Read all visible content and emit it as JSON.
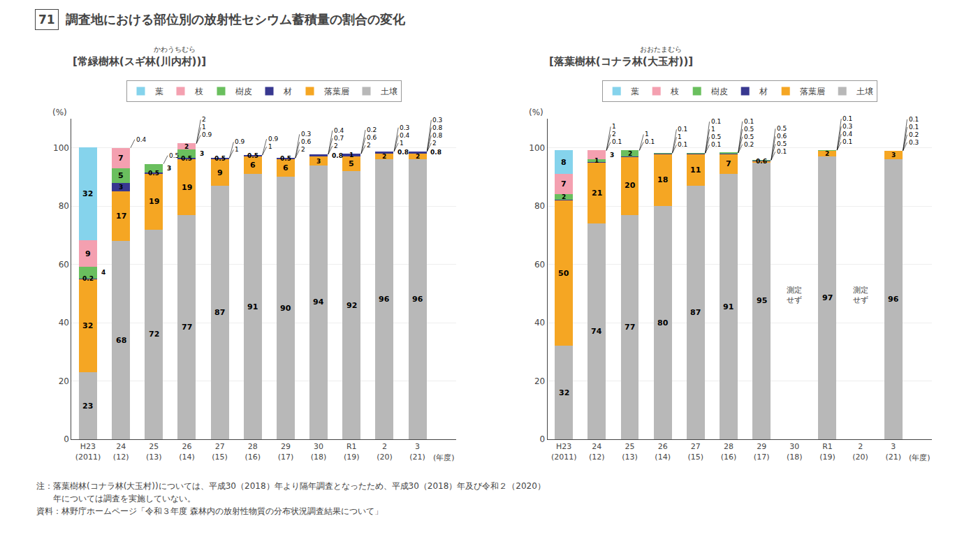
{
  "title": "調査地における部位別の放射性セシウム蓄積量の割合の変化",
  "figure_number": "71",
  "notes": [
    "注：落葉樹林(コナラ林(大玉村))については、平成30（2018）年より隔年調査となったため、平成30（2018）年及び令和２（2020）",
    "　　年については調査を実施していない。"
  ],
  "source": "資料：林野庁ホームページ「令和３年度 森林内の放射性物質の分布状況調査結果について」",
  "chart_data": [
    {
      "type": "bar",
      "stacked": true,
      "title": "[常緑樹林(スギ林(川内村))]",
      "subtitle": "かわうちむら",
      "xlabel": "(年度)",
      "ylabel": "(%)",
      "categories": [
        "H23\n(2011)",
        "24\n(12)",
        "25\n(13)",
        "26\n(14)",
        "27\n(15)",
        "28\n(16)",
        "29\n(17)",
        "30\n(18)",
        "R1\n(19)",
        "2\n(20)",
        "3\n(21)"
      ],
      "ylim": [
        0,
        110
      ],
      "yticks": [
        0,
        20,
        40,
        60,
        80,
        100
      ],
      "grid": "y",
      "legend": "top",
      "data_labels": true,
      "series": [
        {
          "name": "土壌",
          "color": "#b8b8b8",
          "values": [
            23,
            68,
            72,
            77,
            87,
            91,
            90,
            94,
            92,
            96,
            96
          ],
          "value_labels": [
            "23",
            "68",
            "72",
            "77",
            "87",
            "91",
            "90",
            "94",
            "92",
            "96",
            "96"
          ]
        },
        {
          "name": "落葉層",
          "color": "#f5a623",
          "values": [
            32,
            17,
            19,
            19,
            9,
            6,
            6,
            3,
            5,
            2,
            2
          ],
          "value_labels": [
            "32",
            "17",
            "19",
            "19",
            "9",
            "6",
            "6",
            "3",
            "5",
            "2",
            "2"
          ]
        },
        {
          "name": "材",
          "color": "#383890",
          "values": [
            0.2,
            3,
            0.5,
            0.5,
            0.5,
            0.5,
            0.5,
            0.8,
            1,
            0.8,
            0.8
          ],
          "value_labels": [
            "0.2",
            "3",
            "0.5",
            "0.5",
            "0.5",
            "0.5",
            "0.5",
            "0.8",
            "1",
            "0.8",
            "0.8"
          ]
        },
        {
          "name": "樹皮",
          "color": "#6abf5e",
          "values": [
            4,
            5,
            3,
            3,
            0,
            0,
            0,
            0,
            0,
            0,
            0
          ],
          "value_labels": [
            "4",
            "5",
            "3",
            "3",
            null,
            null,
            null,
            null,
            null,
            null,
            null
          ]
        },
        {
          "name": "枝",
          "color": "#f4a0b0",
          "values": [
            9,
            7,
            0,
            2,
            0,
            0,
            0,
            0,
            0,
            0,
            0
          ],
          "value_labels": [
            "9",
            "7",
            null,
            "2",
            null,
            null,
            null,
            null,
            null,
            null,
            null
          ]
        },
        {
          "name": "葉",
          "color": "#85d3ec",
          "values": [
            32,
            0,
            0,
            0,
            0,
            0,
            0,
            0,
            0,
            0,
            0
          ],
          "value_labels": [
            "32",
            null,
            null,
            null,
            null,
            null,
            null,
            null,
            null,
            null,
            null
          ]
        }
      ],
      "callouts": [
        {
          "category": "24\n(12)",
          "labels": [
            "0.4"
          ]
        },
        {
          "category": "25\n(13)",
          "labels": [
            "0.5"
          ]
        },
        {
          "category": "26\n(14)",
          "labels": [
            "2",
            "1",
            "0.9"
          ]
        },
        {
          "category": "27\n(15)",
          "labels": [
            "0.9",
            "1"
          ]
        },
        {
          "category": "28\n(16)",
          "labels": [
            "0.9",
            "1"
          ]
        },
        {
          "category": "29\n(17)",
          "labels": [
            "0.3",
            "0.6",
            "2"
          ]
        },
        {
          "category": "30\n(18)",
          "labels": [
            "0.4",
            "0.7",
            "2"
          ]
        },
        {
          "category": "R1\n(19)",
          "labels": [
            "0.2",
            "0.6",
            "2"
          ]
        },
        {
          "category": "2\n(20)",
          "labels": [
            "0.3",
            "0.4",
            "1"
          ]
        },
        {
          "category": "3\n(21)",
          "labels": [
            "0.3",
            "0.8",
            "0.8",
            "2"
          ]
        }
      ]
    },
    {
      "type": "bar",
      "stacked": true,
      "title": "[落葉樹林(コナラ林(大玉村))]",
      "subtitle": "おおたまむら",
      "xlabel": "(年度)",
      "ylabel": "(%)",
      "categories": [
        "H23\n(2011)",
        "24\n(12)",
        "25\n(13)",
        "26\n(14)",
        "27\n(15)",
        "28\n(16)",
        "29\n(17)",
        "30\n(18)",
        "R1\n(19)",
        "2\n(20)",
        "3\n(21)"
      ],
      "ylim": [
        0,
        110
      ],
      "yticks": [
        0,
        20,
        40,
        60,
        80,
        100
      ],
      "grid": "y",
      "legend": "top",
      "data_labels": true,
      "series": [
        {
          "name": "土壌",
          "color": "#b8b8b8",
          "values": [
            32,
            74,
            77,
            80,
            87,
            91,
            95,
            0,
            97,
            0,
            96
          ],
          "value_labels": [
            "32",
            "74",
            "77",
            "80",
            "87",
            "91",
            "95",
            null,
            "97",
            null,
            "96"
          ]
        },
        {
          "name": "落葉層",
          "color": "#f5a623",
          "values": [
            50,
            21,
            20,
            18,
            11,
            7,
            0.6,
            0,
            2,
            0,
            3
          ],
          "value_labels": [
            "50",
            "21",
            "20",
            "18",
            "11",
            "7",
            "0.6",
            null,
            "2",
            null,
            "3"
          ]
        },
        {
          "name": "材",
          "color": "#383890",
          "values": [
            0.1,
            0.1,
            0.1,
            0.1,
            0.1,
            0.1,
            0.1,
            0,
            0.1,
            0,
            0
          ],
          "value_labels": [
            null,
            null,
            null,
            null,
            null,
            null,
            null,
            null,
            null,
            null,
            null
          ]
        },
        {
          "name": "樹皮",
          "color": "#6abf5e",
          "values": [
            2,
            1,
            2,
            0.1,
            0.1,
            0.2,
            0.1,
            0,
            0.1,
            0,
            0
          ],
          "value_labels": [
            "2",
            "1",
            "2",
            null,
            null,
            null,
            null,
            null,
            null,
            null,
            null
          ]
        },
        {
          "name": "枝",
          "color": "#f4a0b0",
          "values": [
            7,
            3,
            0,
            0,
            0,
            0,
            0,
            0,
            0,
            0,
            0
          ],
          "value_labels": [
            "7",
            "3",
            null,
            null,
            null,
            null,
            null,
            null,
            null,
            null,
            null
          ]
        },
        {
          "name": "葉",
          "color": "#85d3ec",
          "values": [
            8,
            0,
            0,
            0,
            0,
            0,
            0,
            0,
            0,
            0,
            0
          ],
          "value_labels": [
            "8",
            null,
            null,
            null,
            null,
            null,
            null,
            null,
            null,
            null,
            null
          ]
        }
      ],
      "annotations": [
        {
          "category": "30\n(18)",
          "text": "測定\nせず"
        },
        {
          "category": "2\n(20)",
          "text": "測定\nせず"
        }
      ],
      "callouts": [
        {
          "category": "24\n(12)",
          "labels": [
            "1",
            "2",
            "0.1"
          ]
        },
        {
          "category": "25\n(13)",
          "labels": [
            "1",
            "0.1"
          ]
        },
        {
          "category": "26\n(14)",
          "labels": [
            "0.1",
            "1",
            "0.1"
          ]
        },
        {
          "category": "27\n(15)",
          "labels": [
            "0.1",
            "1",
            "0.5",
            "0.1"
          ]
        },
        {
          "category": "28\n(16)",
          "labels": [
            "0.1",
            "0.5",
            "0.5",
            "0.2"
          ]
        },
        {
          "category": "29\n(17)",
          "labels": [
            "0.5",
            "0.6",
            "0.5",
            "0.1"
          ]
        },
        {
          "category": "R1\n(19)",
          "labels": [
            "0.1",
            "0.3",
            "0.4",
            "0.1"
          ]
        },
        {
          "category": "3\n(21)",
          "labels": [
            "0.1",
            "0.1",
            "0.2",
            "0.3"
          ]
        }
      ]
    }
  ]
}
